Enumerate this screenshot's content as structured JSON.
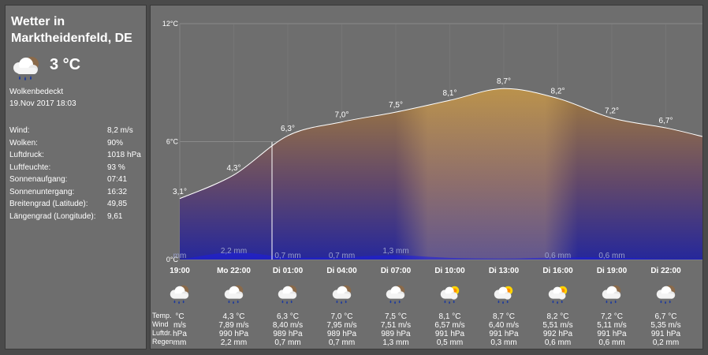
{
  "title": {
    "line1": "Wetter in",
    "line2": "Marktheidenfeld, DE"
  },
  "current": {
    "temp": "3 °C",
    "condition": "Wolkenbedeckt",
    "datetime": "19.Nov 2017 18:03",
    "icon": "cloud-rain-icon"
  },
  "details": [
    {
      "label": "Wind:",
      "value": "8,2 m/s"
    },
    {
      "label": "Wolken:",
      "value": "90%"
    },
    {
      "label": "Luftdruck:",
      "value": "1018 hPa"
    },
    {
      "label": "Luftfeuchte:",
      "value": "93 %"
    },
    {
      "label": "Sonnenaufgang:",
      "value": "07:41"
    },
    {
      "label": "Sonnenuntergang:",
      "value": "16:32"
    },
    {
      "label": "Breitengrad (Latitude):",
      "value": "49,85"
    },
    {
      "label": "Längengrad (Longitude):",
      "value": "9,61"
    }
  ],
  "row_headers": [
    "Temp.",
    "Wind",
    "Luftdr.",
    "Regen"
  ],
  "chart_data": {
    "type": "area",
    "y_ticks": [
      "12°C",
      "6°C",
      "0°C"
    ],
    "ylim": [
      0,
      12
    ],
    "x": [
      "19:00",
      "Mo 22:00",
      "Di 01:00",
      "Di 04:00",
      "Di 07:00",
      "Di 10:00",
      "Di 13:00",
      "Di 16:00",
      "Di 19:00",
      "Di 22:00"
    ],
    "temp_values": [
      3.1,
      4.3,
      6.3,
      7.0,
      7.5,
      8.1,
      8.7,
      8.2,
      7.2,
      6.7
    ],
    "temp_labels": [
      "3,1°",
      "4,3°",
      "6,3°",
      "7,0°",
      "7,5°",
      "8,1°",
      "8,7°",
      "8,2°",
      "7,2°",
      "6,7°"
    ],
    "rain_values": [
      0.0,
      2.2,
      0.7,
      0.7,
      1.3,
      0.5,
      0.3,
      0.6,
      0.6,
      0.2
    ],
    "rain_labels": [
      "mm",
      "2,2 mm",
      "0,7 mm",
      "0,7 mm",
      "1,3 mm",
      "",
      "",
      "0,6 mm",
      "0,6 mm",
      ""
    ],
    "grid": true
  },
  "forecast": [
    {
      "time": "19:00",
      "temp": "°C",
      "wind": "m/s",
      "pressure": "hPa",
      "rain": "mm",
      "icon": "cloud-rain-icon"
    },
    {
      "time": "Mo 22:00",
      "temp": "4,3 °C",
      "wind": "7,89 m/s",
      "pressure": "990 hPa",
      "rain": "2,2 mm",
      "icon": "cloud-rain-icon"
    },
    {
      "time": "Di 01:00",
      "temp": "6,3 °C",
      "wind": "8,40 m/s",
      "pressure": "989 hPa",
      "rain": "0,7 mm",
      "icon": "cloud-rain-icon"
    },
    {
      "time": "Di 04:00",
      "temp": "7,0 °C",
      "wind": "7,95 m/s",
      "pressure": "989 hPa",
      "rain": "0,7 mm",
      "icon": "cloud-rain-icon"
    },
    {
      "time": "Di 07:00",
      "temp": "7,5 °C",
      "wind": "7,51 m/s",
      "pressure": "989 hPa",
      "rain": "1,3 mm",
      "icon": "cloud-rain-icon"
    },
    {
      "time": "Di 10:00",
      "temp": "8,1 °C",
      "wind": "6,57 m/s",
      "pressure": "991 hPa",
      "rain": "0,5 mm",
      "icon": "sun-cloud-rain-icon"
    },
    {
      "time": "Di 13:00",
      "temp": "8,7 °C",
      "wind": "6,40 m/s",
      "pressure": "991 hPa",
      "rain": "0,3 mm",
      "icon": "sun-cloud-rain-icon"
    },
    {
      "time": "Di 16:00",
      "temp": "8,2 °C",
      "wind": "5,51 m/s",
      "pressure": "992 hPa",
      "rain": "0,6 mm",
      "icon": "sun-cloud-rain-icon"
    },
    {
      "time": "Di 19:00",
      "temp": "7,2 °C",
      "wind": "5,11 m/s",
      "pressure": "991 hPa",
      "rain": "0,6 mm",
      "icon": "cloud-rain-icon"
    },
    {
      "time": "Di 22:00",
      "temp": "6,7 °C",
      "wind": "5,35 m/s",
      "pressure": "991 hPa",
      "rain": "0,2 mm",
      "icon": "cloud-rain-icon"
    }
  ]
}
